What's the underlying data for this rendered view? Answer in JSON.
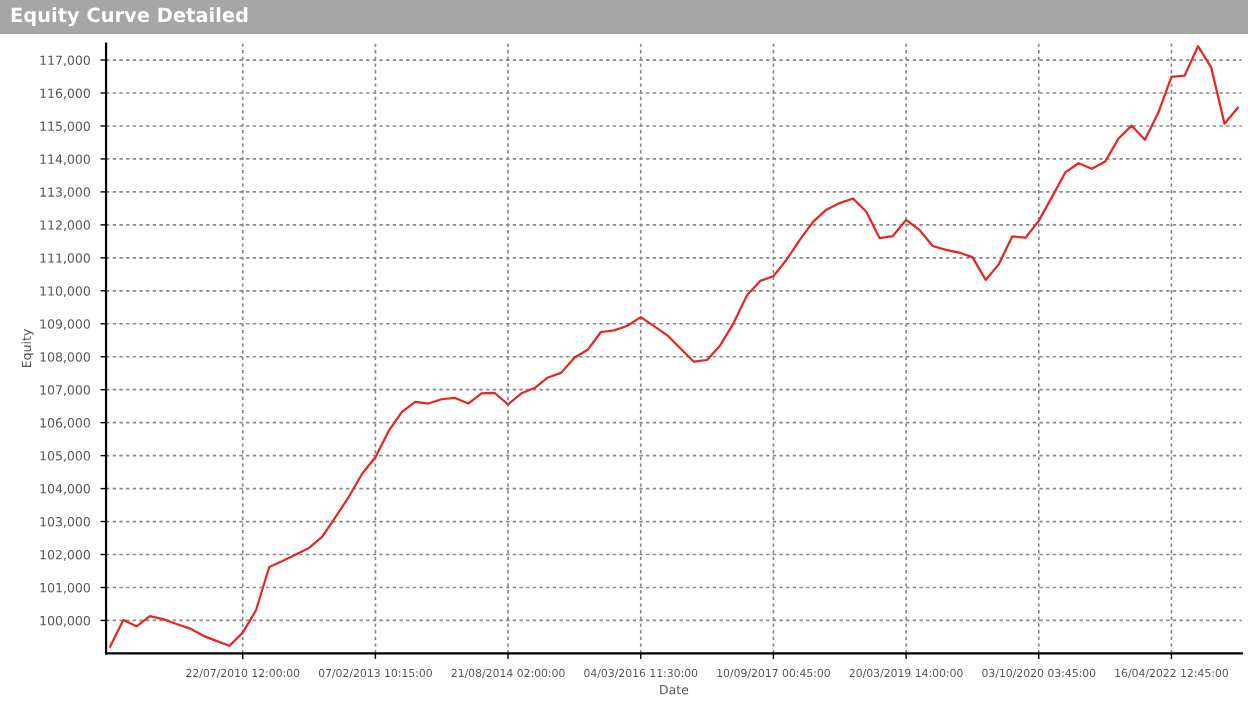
{
  "chart_data": {
    "type": "line",
    "title": "Equity Curve Detailed",
    "xlabel": "Date",
    "ylabel": "Equity",
    "categories": [
      null,
      null,
      null,
      null,
      null,
      null,
      null,
      null,
      null,
      null,
      "22/07/2010 12:00:00",
      null,
      null,
      null,
      null,
      null,
      null,
      null,
      null,
      null,
      "07/02/2013 10:15:00",
      null,
      null,
      null,
      null,
      null,
      null,
      null,
      null,
      null,
      "21/08/2014 02:00:00",
      null,
      null,
      null,
      null,
      null,
      null,
      null,
      null,
      null,
      "04/03/2016 11:30:00",
      null,
      null,
      null,
      null,
      null,
      null,
      null,
      null,
      null,
      "10/09/2017 00:45:00",
      null,
      null,
      null,
      null,
      null,
      null,
      null,
      null,
      null,
      "20/03/2019 14:00:00",
      null,
      null,
      null,
      null,
      null,
      null,
      null,
      null,
      null,
      "03/10/2020 03:45:00",
      null,
      null,
      null,
      null,
      null,
      null,
      null,
      null,
      null,
      "16/04/2022 12:45:00",
      null,
      null,
      null,
      null,
      null
    ],
    "series": [
      {
        "color": "#e8251f",
        "values": [
          99200,
          100010,
          99820,
          100130,
          100040,
          99890,
          99760,
          99540,
          99380,
          99230,
          99630,
          100310,
          101620,
          101800,
          102000,
          102200,
          102540,
          103140,
          103750,
          104450,
          104950,
          105750,
          106330,
          106630,
          106580,
          106710,
          106750,
          106580,
          106890,
          106900,
          106550,
          106890,
          107050,
          107370,
          107510,
          107970,
          108210,
          108750,
          108800,
          108940,
          109200,
          108930,
          108650,
          108250,
          107850,
          107900,
          108350,
          109020,
          109860,
          110300,
          110440,
          110950,
          111550,
          112100,
          112460,
          112660,
          112800,
          112400,
          111600,
          111660,
          112150,
          111850,
          111360,
          111240,
          111160,
          111020,
          110330,
          110810,
          111650,
          111610,
          112120,
          112850,
          113590,
          113870,
          113700,
          113920,
          114610,
          115010,
          114580,
          115390,
          116490,
          116530,
          117420,
          116770,
          115070,
          115550
        ]
      }
    ],
    "ylim": [
      99000,
      117500
    ],
    "yticks": [
      {
        "value": 100000,
        "label": "100,000"
      },
      {
        "value": 101000,
        "label": "101,000"
      },
      {
        "value": 102000,
        "label": "102,000"
      },
      {
        "value": 103000,
        "label": "103,000"
      },
      {
        "value": 104000,
        "label": "104,000"
      },
      {
        "value": 105000,
        "label": "105,000"
      },
      {
        "value": 106000,
        "label": "106,000"
      },
      {
        "value": 107000,
        "label": "107,000"
      },
      {
        "value": 108000,
        "label": "108,000"
      },
      {
        "value": 109000,
        "label": "109,000"
      },
      {
        "value": 110000,
        "label": "110,000"
      },
      {
        "value": 111000,
        "label": "111,000"
      },
      {
        "value": 112000,
        "label": "112,000"
      },
      {
        "value": 113000,
        "label": "113,000"
      },
      {
        "value": 114000,
        "label": "114,000"
      },
      {
        "value": 115000,
        "label": "115,000"
      },
      {
        "value": 116000,
        "label": "116,000"
      },
      {
        "value": 117000,
        "label": "117,000"
      }
    ],
    "grid": true,
    "line_style": "solid"
  }
}
